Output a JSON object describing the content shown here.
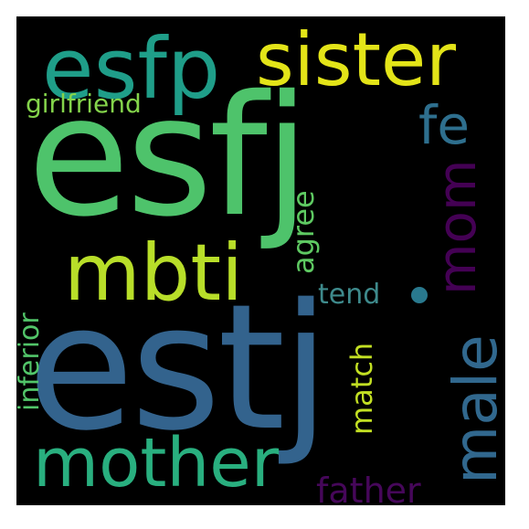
{
  "wordcloud": {
    "background": "#000000",
    "words": [
      {
        "text": "esfj",
        "color": "#4ec36b"
      },
      {
        "text": "estj",
        "color": "#33638d"
      },
      {
        "text": "esfp",
        "color": "#1f9e89"
      },
      {
        "text": "sister",
        "color": "#e3e418"
      },
      {
        "text": "fe",
        "color": "#2e6f8e"
      },
      {
        "text": "mbti",
        "color": "#b8de29"
      },
      {
        "text": "mom",
        "color": "#440154"
      },
      {
        "text": "male",
        "color": "#31688e"
      },
      {
        "text": "mother",
        "color": "#29af7f"
      },
      {
        "text": "girlfriend",
        "color": "#84d44b"
      },
      {
        "text": "agree",
        "color": "#5ec962"
      },
      {
        "text": "tend",
        "color": "#3e8a8c"
      },
      {
        "text": "inferior",
        "color": "#52c569"
      },
      {
        "text": "match",
        "color": "#c2df23"
      },
      {
        "text": "father",
        "color": "#46075a"
      },
      {
        "text": "dot",
        "color": "#29798e"
      }
    ]
  }
}
